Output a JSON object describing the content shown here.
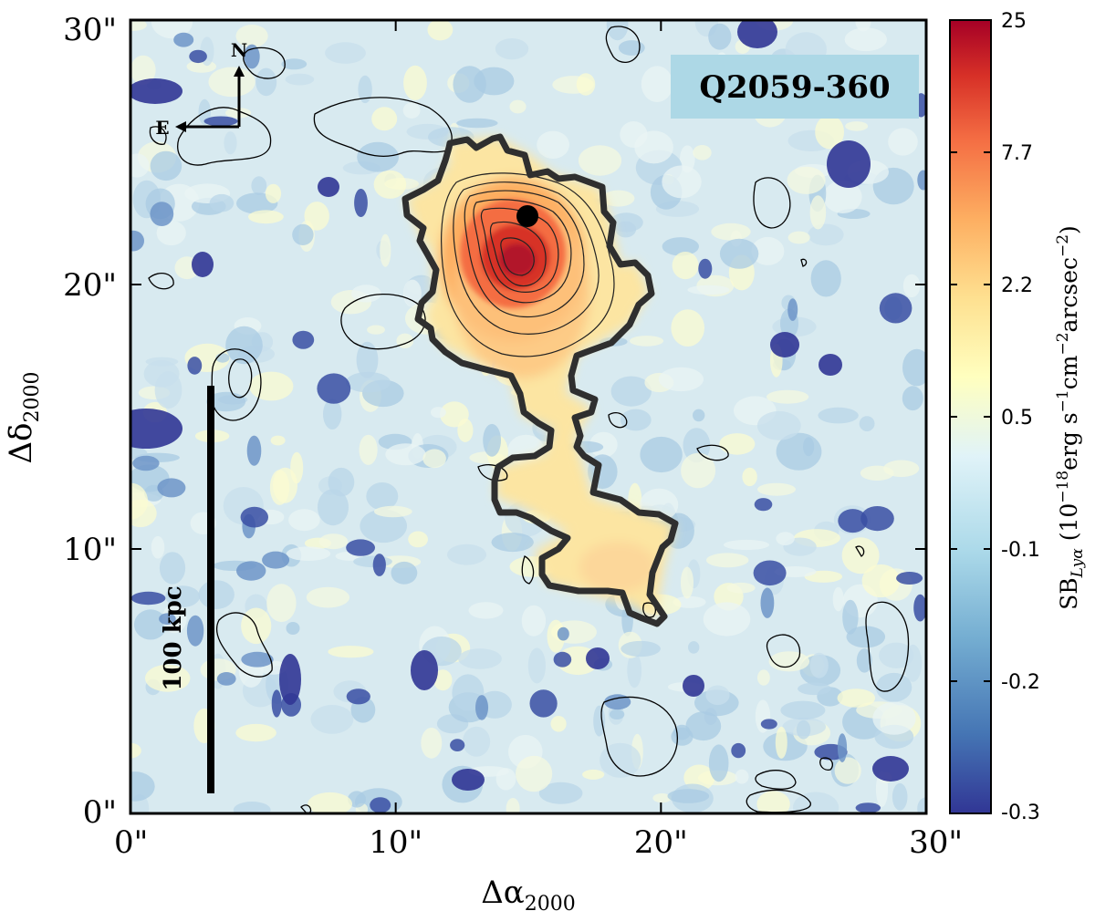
{
  "chart_data": {
    "type": "heatmap",
    "object_label": "Q2059-360",
    "xlabel": "Δα₂₀₀₀",
    "ylabel": "Δδ₂₀₀₀",
    "xlim": [
      0,
      30
    ],
    "ylim": [
      0,
      30
    ],
    "x_ticks": [
      {
        "value": 0,
        "label": "0\""
      },
      {
        "value": 10,
        "label": "10\""
      },
      {
        "value": 20,
        "label": "20\""
      },
      {
        "value": 30,
        "label": "30\""
      }
    ],
    "y_ticks": [
      {
        "value": 0,
        "label": "0\""
      },
      {
        "value": 10,
        "label": "10\""
      },
      {
        "value": 20,
        "label": "20\""
      },
      {
        "value": 30,
        "label": "30\""
      }
    ],
    "colorbar": {
      "label": "SB_{Lyα} (10⁻¹⁸ erg s⁻¹ cm⁻² arcsec⁻²)",
      "tick_labels": [
        "25",
        "7.7",
        "2.2",
        "0.5",
        "-0.1",
        "-0.2",
        "-0.3"
      ],
      "colormap": "RdYlBu_r",
      "colors": [
        "#313695",
        "#4575b4",
        "#74add1",
        "#abd9e9",
        "#e0f3f8",
        "#ffffbf",
        "#fee090",
        "#fdae61",
        "#f46d43",
        "#d73027",
        "#a50026"
      ]
    },
    "compass": {
      "north": "N",
      "east": "E"
    },
    "scale_bar": {
      "label": "100 kpc"
    },
    "features": {
      "quasar_position": [
        15,
        22.5
      ],
      "emission_peak": [
        14.7,
        21
      ],
      "emission_peak_sb": 25
    }
  }
}
